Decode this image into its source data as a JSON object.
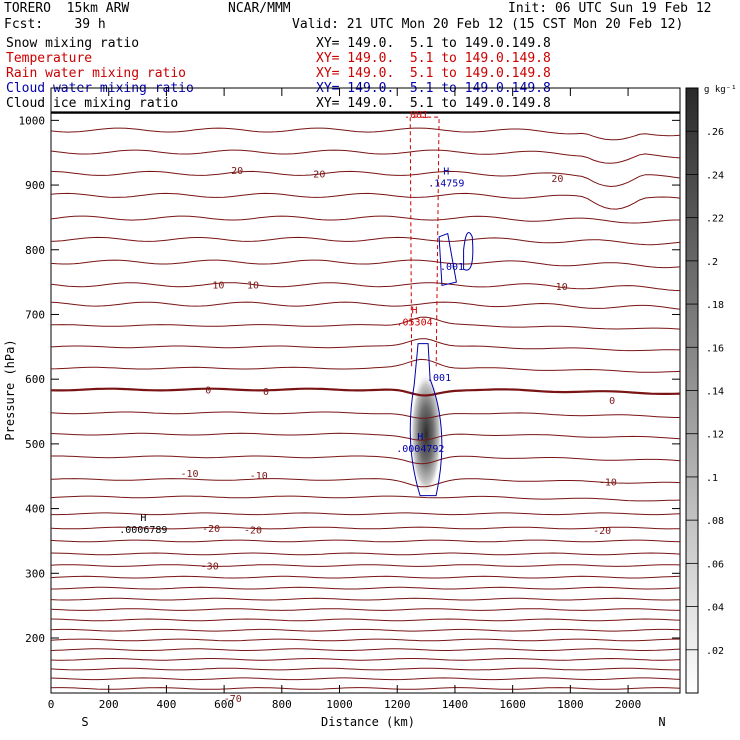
{
  "header": {
    "model": "TORERO  15km ARW",
    "center": "NCAR/MMM",
    "init": "Init: 06 UTC Sun 19 Feb 12",
    "fcst": "Fcst:    39 h",
    "valid": "Valid: 21 UTC Mon 20 Feb 12 (15 CST Mon 20 Feb 12)"
  },
  "fields": [
    {
      "name": "Snow mixing ratio",
      "xy": "XY= 149.0.  5.1 to 149.0.149.8",
      "color": "#000000"
    },
    {
      "name": "Temperature",
      "xy": "XY= 149.0.  5.1 to 149.0.149.8",
      "color": "#cc0000"
    },
    {
      "name": "Rain water mixing ratio",
      "xy": "XY= 149.0.  5.1 to 149.0.149.8",
      "color": "#cc0000"
    },
    {
      "name": "Cloud water mixing ratio",
      "xy": "XY= 149.0.  5.1 to 149.0.149.8",
      "color": "#0000aa"
    },
    {
      "name": "Cloud ice mixing ratio",
      "xy": "XY= 149.0.  5.1 to 149.0.149.8",
      "color": "#000000"
    }
  ],
  "chart_data": {
    "type": "cross-section",
    "xlabel": "Distance (km)",
    "ylabel": "Pressure (hPa)",
    "xlim": [
      0,
      2180
    ],
    "ylim": [
      1050,
      115
    ],
    "x_ticks": [
      "0",
      "200",
      "400",
      "600",
      "800",
      "1000",
      "1200",
      "1400",
      "1600",
      "1800",
      "2000"
    ],
    "y_ticks": [
      "200",
      "300",
      "400",
      "500",
      "600",
      "700",
      "800",
      "900",
      "1000"
    ],
    "x_end_labels": {
      "left": "S",
      "right": "N"
    },
    "colorbar": {
      "unit": "g kg⁻¹",
      "ticks": [
        ".02",
        ".04",
        ".06",
        ".08",
        ".1",
        ".12",
        ".14",
        ".16",
        ".18",
        ".2",
        ".22",
        ".24",
        ".26"
      ],
      "max": 0.28
    },
    "temperature_contour_labels": [
      {
        "text": "-70",
        "x": 630,
        "p": 107
      },
      {
        "text": "-30",
        "x": 550,
        "p": 312
      },
      {
        "text": "-20",
        "x": 555,
        "p": 370
      },
      {
        "text": "-20",
        "x": 700,
        "p": 368
      },
      {
        "text": "-20",
        "x": 1910,
        "p": 367
      },
      {
        "text": "-10",
        "x": 480,
        "p": 455
      },
      {
        "text": "-10",
        "x": 720,
        "p": 452
      },
      {
        "text": "-10",
        "x": 1930,
        "p": 442
      },
      {
        "text": "0",
        "x": 545,
        "p": 584
      },
      {
        "text": "0",
        "x": 745,
        "p": 582
      },
      {
        "text": "0",
        "x": 1945,
        "p": 568
      },
      {
        "text": "10",
        "x": 580,
        "p": 746
      },
      {
        "text": "10",
        "x": 700,
        "p": 746
      },
      {
        "text": "10",
        "x": 1770,
        "p": 744
      },
      {
        "text": "20",
        "x": 645,
        "p": 923
      },
      {
        "text": "20",
        "x": 930,
        "p": 918
      },
      {
        "text": "20",
        "x": 1755,
        "p": 911
      }
    ],
    "extrema": [
      {
        "mark": "H",
        "value": ".0006789",
        "x": 320,
        "p": 375,
        "color": "#000000"
      },
      {
        "mark": "H",
        "value": ".0004792",
        "x": 1280,
        "p": 500,
        "color": "#0000aa"
      },
      {
        "mark": "H",
        "value": ".05304",
        "x": 1260,
        "p": 695,
        "color": "#cc0000"
      },
      {
        "mark": "H",
        "value": ".14759",
        "x": 1370,
        "p": 910,
        "color": "#0000aa"
      }
    ],
    "cloud_water_labels": [
      {
        "text": ".001",
        "x": 1345,
        "p": 603
      },
      {
        "text": ".001",
        "x": 1390,
        "p": 775
      }
    ],
    "rain_water_labels": [
      {
        "text": ".001",
        "x": 1265,
        "p": 1010
      }
    ],
    "snow_max_value": 0.22,
    "snow_center": {
      "x": 1300,
      "p": 515
    }
  }
}
